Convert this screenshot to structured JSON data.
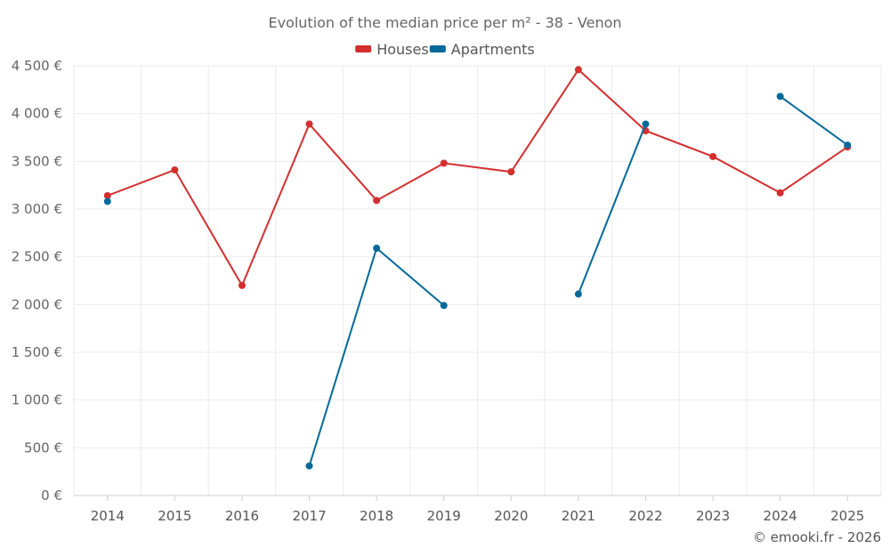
{
  "chart_data": {
    "type": "line",
    "title": "Evolution of the median price per m² - 38 - Venon",
    "categories": [
      "2014",
      "2015",
      "2016",
      "2017",
      "2018",
      "2019",
      "2020",
      "2021",
      "2022",
      "2023",
      "2024",
      "2025"
    ],
    "ylim": [
      0,
      4500
    ],
    "yticks": [
      0,
      500,
      1000,
      1500,
      2000,
      2500,
      3000,
      3500,
      4000,
      4500
    ],
    "ytick_labels": [
      "0 €",
      "500 €",
      "1 000 €",
      "1 500 €",
      "2 000 €",
      "2 500 €",
      "3 000 €",
      "3 500 €",
      "4 000 €",
      "4 500 €"
    ],
    "grid": true,
    "legend_position": "top-center",
    "series": [
      {
        "name": "Houses",
        "color": "#d32f2f",
        "values": [
          3140,
          3410,
          2200,
          3890,
          3090,
          3480,
          3390,
          4460,
          3820,
          3550,
          3170,
          3650
        ]
      },
      {
        "name": "Apartments",
        "color": "#01699a",
        "values": [
          3080,
          null,
          null,
          310,
          2590,
          1990,
          null,
          2110,
          3890,
          null,
          4180,
          3670
        ]
      }
    ],
    "credit": "© emooki.fr - 2026"
  }
}
